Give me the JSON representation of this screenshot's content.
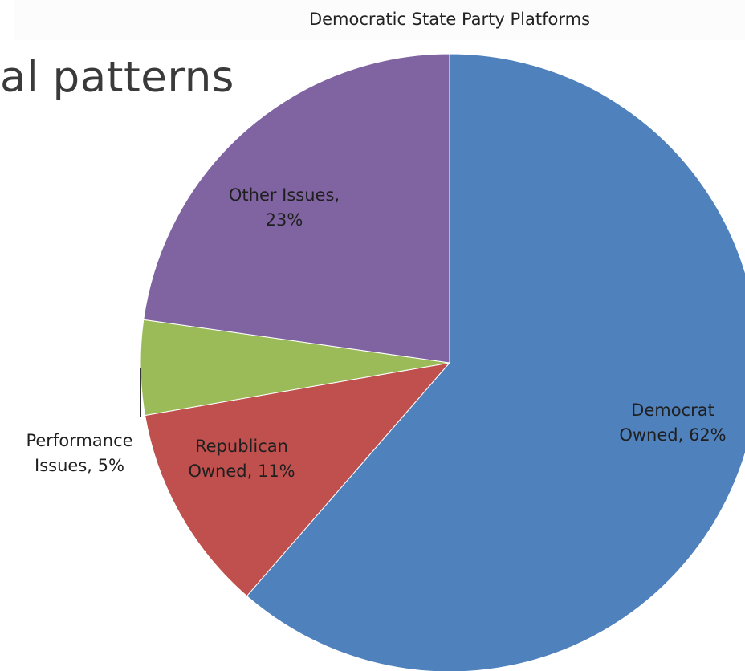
{
  "slide": {
    "partial_heading": "al patterns"
  },
  "chart_data": {
    "type": "pie",
    "title": "Democratic State Party Platforms",
    "slices": [
      {
        "label_lines": [
          "Democrat",
          "Owned, 62%"
        ],
        "name": "Democrat Owned",
        "value": 62,
        "color": "#4f81bd"
      },
      {
        "label_lines": [
          "Republican",
          "Owned, 11%"
        ],
        "name": "Republican Owned",
        "value": 11,
        "color": "#c0504d"
      },
      {
        "label_lines": [
          "Performance",
          "Issues, 5%"
        ],
        "name": "Performance Issues",
        "value": 5,
        "color": "#9bbb59"
      },
      {
        "label_lines": [
          "Other Issues,",
          "23%"
        ],
        "name": "Other Issues",
        "value": 23,
        "color": "#8064a2"
      }
    ]
  }
}
